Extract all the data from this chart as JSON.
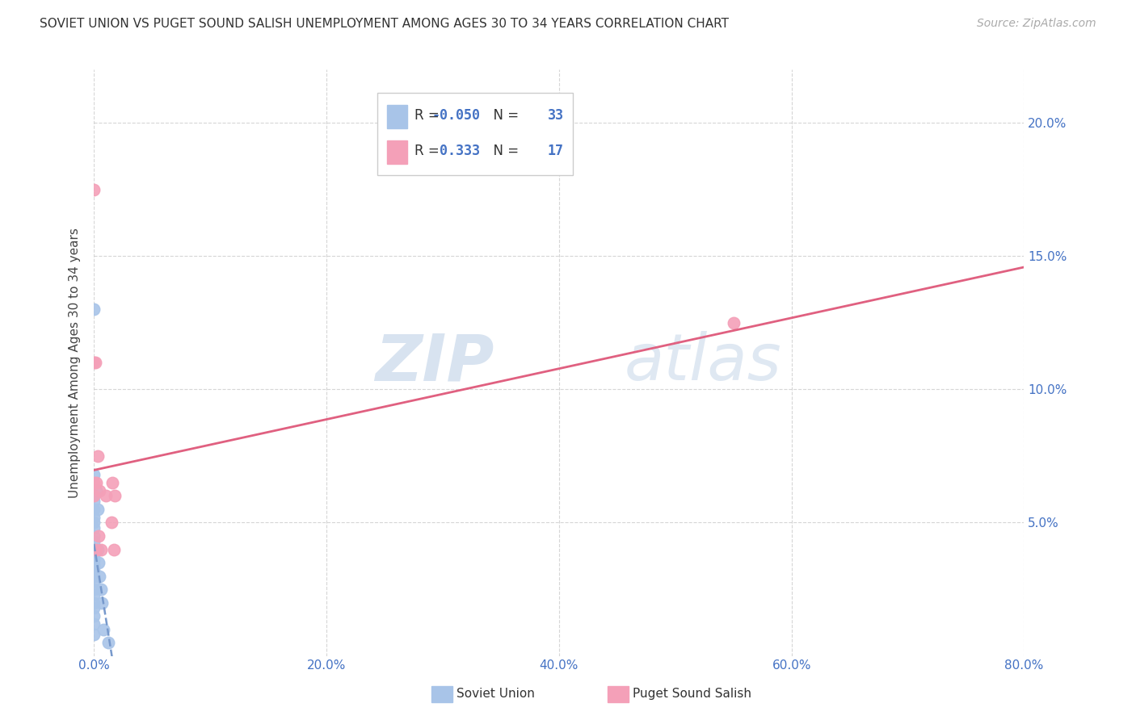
{
  "title": "SOVIET UNION VS PUGET SOUND SALISH UNEMPLOYMENT AMONG AGES 30 TO 34 YEARS CORRELATION CHART",
  "source": "Source: ZipAtlas.com",
  "ylabel_label": "Unemployment Among Ages 30 to 34 years",
  "xlim": [
    0.0,
    0.8
  ],
  "ylim": [
    0.0,
    0.22
  ],
  "xticks": [
    0.0,
    0.2,
    0.4,
    0.6,
    0.8
  ],
  "yticks": [
    0.05,
    0.1,
    0.15,
    0.2
  ],
  "xtick_labels": [
    "0.0%",
    "20.0%",
    "40.0%",
    "60.0%",
    "80.0%"
  ],
  "ytick_labels": [
    "5.0%",
    "10.0%",
    "15.0%",
    "20.0%"
  ],
  "background_color": "#ffffff",
  "grid_color": "#cccccc",
  "watermark_zip": "ZIP",
  "watermark_atlas": "atlas",
  "soviet_union": {
    "name": "Soviet Union",
    "R": "-0.050",
    "N": "33",
    "color": "#a8c4e8",
    "line_color": "#7799cc",
    "line_style": "--",
    "x": [
      0.0,
      0.0,
      0.0,
      0.0,
      0.0,
      0.0,
      0.0,
      0.0,
      0.0,
      0.0,
      0.0,
      0.0,
      0.0,
      0.0,
      0.0,
      0.0,
      0.0,
      0.0,
      0.0,
      0.0,
      0.0,
      0.0,
      0.0,
      0.0,
      0.002,
      0.003,
      0.003,
      0.004,
      0.005,
      0.006,
      0.007,
      0.008,
      0.012
    ],
    "y": [
      0.13,
      0.068,
      0.06,
      0.058,
      0.055,
      0.052,
      0.05,
      0.048,
      0.045,
      0.043,
      0.04,
      0.038,
      0.036,
      0.034,
      0.032,
      0.03,
      0.028,
      0.025,
      0.023,
      0.02,
      0.018,
      0.015,
      0.012,
      0.008,
      0.062,
      0.055,
      0.04,
      0.035,
      0.03,
      0.025,
      0.02,
      0.01,
      0.005
    ]
  },
  "puget_sound": {
    "name": "Puget Sound Salish",
    "R": "0.333",
    "N": "17",
    "color": "#f4a0b8",
    "line_color": "#e06080",
    "line_style": "-",
    "x": [
      0.0,
      0.0,
      0.0,
      0.001,
      0.002,
      0.002,
      0.003,
      0.004,
      0.005,
      0.006,
      0.01,
      0.015,
      0.016,
      0.017,
      0.018,
      0.55,
      0.0
    ],
    "y": [
      0.175,
      0.11,
      0.065,
      0.11,
      0.065,
      0.04,
      0.075,
      0.045,
      0.062,
      0.04,
      0.06,
      0.05,
      0.065,
      0.04,
      0.06,
      0.125,
      0.06
    ]
  }
}
